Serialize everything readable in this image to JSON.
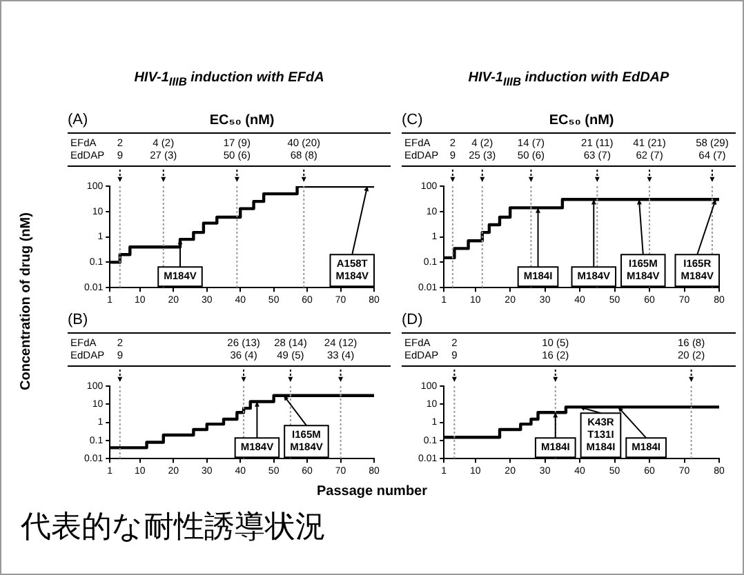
{
  "chart_data": [
    {
      "type": "step",
      "title": "(A)",
      "subtitle": "HIV-1$_{IIIB}$ induction with EFdA",
      "ylabel": "Concentration of drug (nM)",
      "log": "y",
      "xlim": [
        1,
        80
      ],
      "xticks": [
        1,
        10,
        20,
        30,
        40,
        50,
        60,
        70,
        80
      ],
      "ylim": [
        0.01,
        100
      ],
      "yticks": [
        0.01,
        0.1,
        1,
        10,
        100
      ],
      "grid": false,
      "legend": false,
      "x": [
        1,
        4,
        7,
        22,
        26,
        29,
        33,
        40,
        44,
        47,
        57,
        80
      ],
      "series": [
        {
          "color": "#000000",
          "values": [
            0.1,
            0.2,
            0.4,
            0.8,
            1.5,
            3.5,
            6,
            13,
            25,
            50,
            100,
            100
          ]
        }
      ],
      "ref_lines": [
        {
          "axis": "x",
          "value": 4,
          "line_style": "dotted"
        },
        {
          "axis": "x",
          "value": 17,
          "line_style": "dotted"
        },
        {
          "axis": "x",
          "value": 39,
          "line_style": "dotted"
        },
        {
          "axis": "x",
          "value": 59,
          "line_style": "dotted"
        }
      ],
      "annotations": [
        "EC₅₀ (nM)",
        "EFdA\nEdDAP",
        "2\n9",
        "4 (2)\n27 (3)",
        "17 (9)\n50 (6)",
        "40 (20)\n68 (8)",
        {
          "text": "M184V",
          "x": 22,
          "y": 0.8
        },
        {
          "text": "A158T\nM184V",
          "x": 78,
          "y": 100
        }
      ]
    },
    {
      "type": "step",
      "title": "(C)",
      "subtitle": "HIV-1$_{IIIB}$ induction with EdDAP",
      "log": "y",
      "xlim": [
        1,
        80
      ],
      "xticks": [
        1,
        10,
        20,
        30,
        40,
        50,
        60,
        70,
        80
      ],
      "ylim": [
        0.01,
        100
      ],
      "yticks": [
        0.01,
        0.1,
        1,
        10,
        100
      ],
      "grid": false,
      "legend": false,
      "x": [
        1,
        4,
        8,
        12,
        14,
        17,
        20,
        35,
        80
      ],
      "series": [
        {
          "color": "#000000",
          "values": [
            0.15,
            0.35,
            0.7,
            1.5,
            3,
            6,
            14,
            30,
            30
          ]
        }
      ],
      "ref_lines": [
        {
          "axis": "x",
          "value": 3.5,
          "line_style": "dotted"
        },
        {
          "axis": "x",
          "value": 12,
          "line_style": "dotted"
        },
        {
          "axis": "x",
          "value": 26,
          "line_style": "dotted"
        },
        {
          "axis": "x",
          "value": 45,
          "line_style": "dotted"
        },
        {
          "axis": "x",
          "value": 60,
          "line_style": "dotted"
        },
        {
          "axis": "x",
          "value": 78,
          "line_style": "dotted"
        }
      ],
      "annotations": [
        "EC₅₀ (nM)",
        "EFdA\nEdDAP",
        "2\n9",
        "4 (2)\n25 (3)",
        "14 (7)\n50 (6)",
        "21 (11)\n63 (7)",
        "41 (21)\n62 (7)",
        "58 (29)\n64 (7)",
        {
          "text": "M184I",
          "x": 28,
          "y": 14
        },
        {
          "text": "M184V",
          "x": 44,
          "y": 30
        },
        {
          "text": "I165M\nM184V",
          "x": 57,
          "y": 30
        },
        {
          "text": "I165R\nM184V",
          "x": 79,
          "y": 30
        }
      ]
    },
    {
      "type": "step",
      "title": "(B)",
      "subtitle": "代表的な耐性誘導状況",
      "xlabel": "Passage number",
      "log": "y",
      "xlim": [
        1,
        80
      ],
      "xticks": [
        1,
        10,
        20,
        30,
        40,
        50,
        60,
        70,
        80
      ],
      "ylim": [
        0.01,
        100
      ],
      "yticks": [
        0.01,
        0.1,
        1,
        10,
        100
      ],
      "grid": false,
      "legend": false,
      "x": [
        1,
        12,
        17,
        26,
        30,
        35,
        39,
        41,
        43,
        50,
        80
      ],
      "series": [
        {
          "color": "#000000",
          "values": [
            0.04,
            0.08,
            0.2,
            0.4,
            0.8,
            1.5,
            3.5,
            6,
            14,
            30,
            30
          ]
        }
      ],
      "ref_lines": [
        {
          "axis": "x",
          "value": 4,
          "line_style": "dotted"
        },
        {
          "axis": "x",
          "value": 41,
          "line_style": "dotted"
        },
        {
          "axis": "x",
          "value": 55,
          "line_style": "dotted"
        },
        {
          "axis": "x",
          "value": 70,
          "line_style": "dotted"
        }
      ],
      "annotations": [
        "EFdA\nEdDAP",
        "2\n9",
        "26 (13)\n36 (4)",
        "28 (14)\n49 (5)",
        "24 (12)\n33 (4)",
        {
          "text": "M184V",
          "x": 45,
          "y": 14
        },
        {
          "text": "I165M\nM184V",
          "x": 53,
          "y": 30
        }
      ]
    },
    {
      "type": "step",
      "title": "(D)",
      "log": "y",
      "xlim": [
        1,
        80
      ],
      "xticks": [
        1,
        10,
        20,
        30,
        40,
        50,
        60,
        70,
        80
      ],
      "ylim": [
        0.01,
        100
      ],
      "yticks": [
        0.01,
        0.1,
        1,
        10,
        100
      ],
      "grid": false,
      "legend": false,
      "x": [
        1,
        17,
        23,
        26,
        28,
        36,
        80
      ],
      "series": [
        {
          "color": "#000000",
          "values": [
            0.15,
            0.4,
            0.8,
            1.5,
            3.5,
            7,
            7
          ]
        }
      ],
      "ref_lines": [
        {
          "axis": "x",
          "value": 4,
          "line_style": "dotted"
        },
        {
          "axis": "x",
          "value": 33,
          "line_style": "dotted"
        },
        {
          "axis": "x",
          "value": 72,
          "line_style": "dotted"
        }
      ],
      "annotations": [
        "EFdA\nEdDAP",
        "2\n9",
        "10 (5)\n16 (2)",
        "16 (8)\n20 (2)",
        {
          "text": "M184I",
          "x": 33,
          "y": 3.5
        },
        {
          "text": "K43R\nT131I\nM184I",
          "x": 40,
          "y": 7
        },
        {
          "text": "M184I",
          "x": 51,
          "y": 7
        }
      ]
    }
  ]
}
